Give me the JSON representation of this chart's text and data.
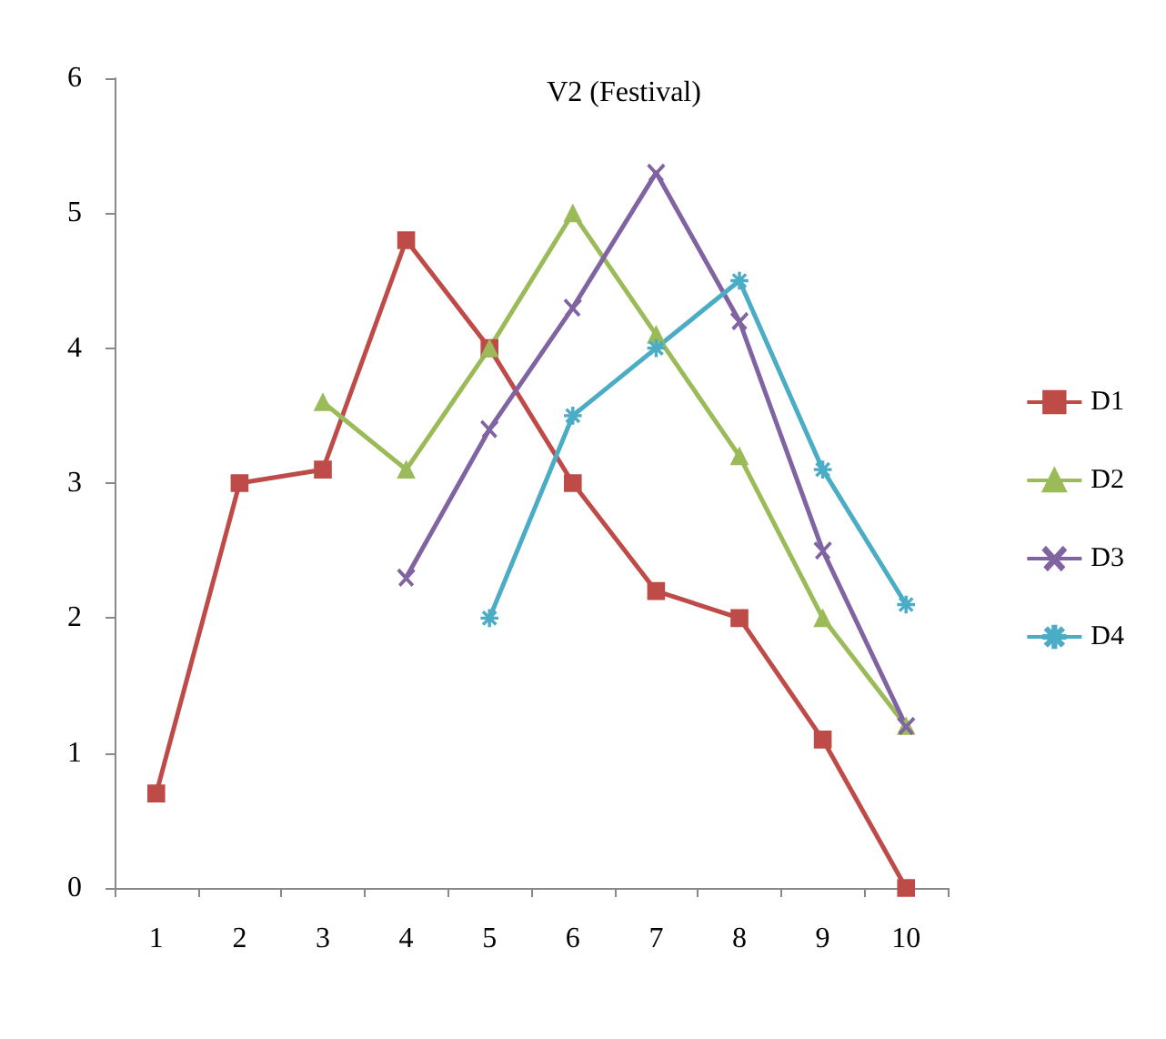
{
  "chart_data": {
    "type": "line",
    "title": "V2 (Festival)",
    "categories": [
      "1",
      "2",
      "3",
      "4",
      "5",
      "6",
      "7",
      "8",
      "9",
      "10"
    ],
    "series": [
      {
        "name": "D1",
        "color": "#be4b48",
        "marker": "square",
        "values": [
          0.7,
          3.0,
          3.1,
          4.8,
          4.0,
          3.0,
          2.2,
          2.0,
          1.1,
          0
        ]
      },
      {
        "name": "D2",
        "color": "#9bbb59",
        "marker": "triangle",
        "values": [
          null,
          null,
          3.6,
          3.1,
          4.0,
          5.0,
          4.1,
          3.2,
          2.0,
          1.2
        ]
      },
      {
        "name": "D3",
        "color": "#8064a2",
        "marker": "cross",
        "values": [
          null,
          null,
          null,
          2.3,
          3.4,
          4.3,
          5.3,
          4.2,
          2.5,
          1.2
        ]
      },
      {
        "name": "D4",
        "color": "#4bacc6",
        "marker": "star",
        "values": [
          null,
          null,
          null,
          null,
          2.0,
          3.5,
          4.0,
          4.5,
          3.1,
          2.1
        ]
      }
    ],
    "ylim": [
      0,
      6
    ],
    "yticks": [
      0,
      1,
      2,
      3,
      4,
      5,
      6
    ],
    "grid": false,
    "legend": "right",
    "line_style": "solid"
  }
}
